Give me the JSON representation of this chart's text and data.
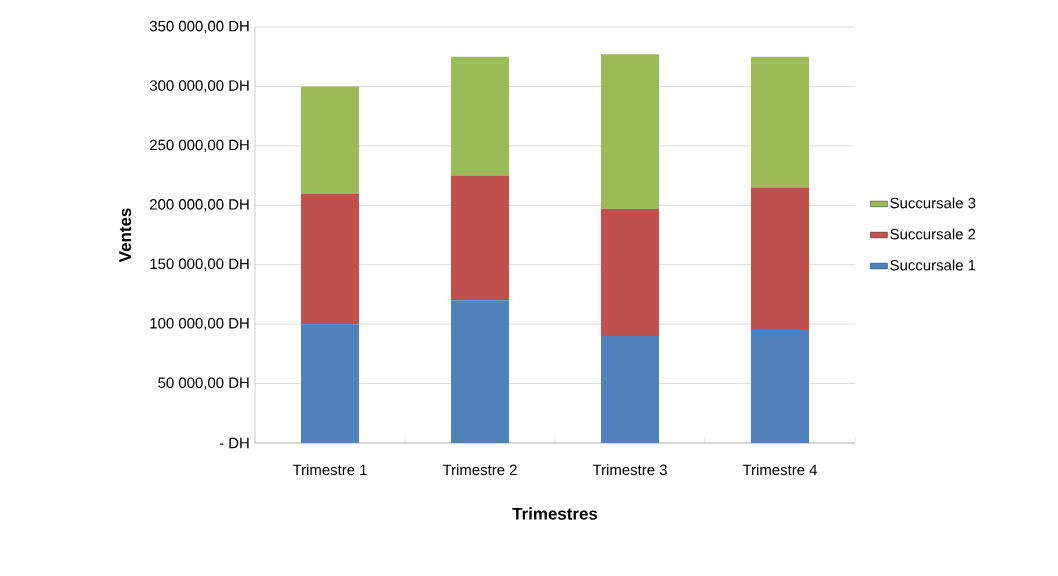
{
  "chart_data": {
    "type": "bar",
    "stacked": true,
    "xlabel": "Trimestres",
    "ylabel": "Ventes",
    "categories": [
      "Trimestre 1",
      "Trimestre 2",
      "Trimestre 3",
      "Trimestre 4"
    ],
    "series": [
      {
        "name": "Succursale 1",
        "color": "#4f81bd",
        "values": [
          100000,
          120000,
          90000,
          95000
        ]
      },
      {
        "name": "Succursale 2",
        "color": "#c0504d",
        "values": [
          110000,
          105000,
          107000,
          120000
        ]
      },
      {
        "name": "Succursale 3",
        "color": "#9bbb59",
        "values": [
          90000,
          100000,
          130000,
          110000
        ]
      }
    ],
    "ylim": [
      0,
      350000
    ],
    "yticks": [
      {
        "value": 0,
        "label": "-   DH"
      },
      {
        "value": 50000,
        "label": "50 000,00 DH"
      },
      {
        "value": 100000,
        "label": "100 000,00 DH"
      },
      {
        "value": 150000,
        "label": "150 000,00 DH"
      },
      {
        "value": 200000,
        "label": "200 000,00 DH"
      },
      {
        "value": 250000,
        "label": "250 000,00 DH"
      },
      {
        "value": 300000,
        "label": "300 000,00 DH"
      },
      {
        "value": 350000,
        "label": "350 000,00 DH"
      }
    ],
    "grid": "y",
    "legend": "right"
  }
}
